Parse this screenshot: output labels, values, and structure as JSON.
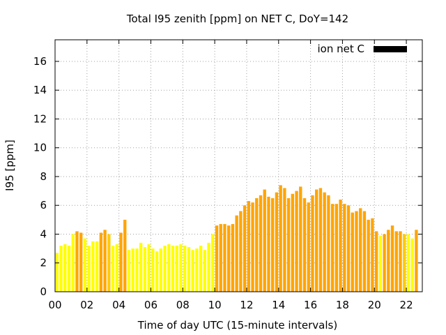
{
  "chart_data": {
    "type": "bar",
    "title": "Total I95 zenith [ppm] on NET C, DoY=142",
    "xlabel": "Time of day UTC (15-minute intervals)",
    "ylabel": "I95 [ppm]",
    "xlim": [
      0,
      23
    ],
    "ylim": [
      0,
      17.5
    ],
    "xticks": [
      "00",
      "02",
      "04",
      "06",
      "08",
      "10",
      "12",
      "14",
      "16",
      "18",
      "20",
      "22"
    ],
    "yticks": [
      "0",
      "2",
      "4",
      "6",
      "8",
      "10",
      "12",
      "14",
      "16"
    ],
    "grid": true,
    "legend": {
      "label": "ion net C",
      "color": "#000000",
      "position": "top-right"
    },
    "colors": {
      "yellow": "#ffff00",
      "amber": "#ffcc00",
      "orange": "#ffa500"
    },
    "bar_width_hours": 0.19,
    "bars": [
      {
        "x": 0.125,
        "y": 2.7,
        "c": "yellow"
      },
      {
        "x": 0.375,
        "y": 3.2,
        "c": "yellow"
      },
      {
        "x": 0.625,
        "y": 3.3,
        "c": "yellow"
      },
      {
        "x": 0.875,
        "y": 3.2,
        "c": "yellow"
      },
      {
        "x": 1.125,
        "y": 4.0,
        "c": "yellow"
      },
      {
        "x": 1.375,
        "y": 4.2,
        "c": "orange"
      },
      {
        "x": 1.625,
        "y": 4.1,
        "c": "orange"
      },
      {
        "x": 1.875,
        "y": 3.7,
        "c": "yellow"
      },
      {
        "x": 2.125,
        "y": 3.2,
        "c": "yellow"
      },
      {
        "x": 2.375,
        "y": 3.5,
        "c": "yellow"
      },
      {
        "x": 2.625,
        "y": 3.5,
        "c": "yellow"
      },
      {
        "x": 2.875,
        "y": 4.1,
        "c": "orange"
      },
      {
        "x": 3.125,
        "y": 4.3,
        "c": "orange"
      },
      {
        "x": 3.375,
        "y": 4.0,
        "c": "amber"
      },
      {
        "x": 3.625,
        "y": 3.2,
        "c": "yellow"
      },
      {
        "x": 3.875,
        "y": 3.3,
        "c": "yellow"
      },
      {
        "x": 4.125,
        "y": 4.1,
        "c": "orange"
      },
      {
        "x": 4.375,
        "y": 5.0,
        "c": "orange"
      },
      {
        "x": 4.625,
        "y": 2.9,
        "c": "yellow"
      },
      {
        "x": 4.875,
        "y": 3.0,
        "c": "yellow"
      },
      {
        "x": 5.125,
        "y": 3.0,
        "c": "yellow"
      },
      {
        "x": 5.375,
        "y": 3.4,
        "c": "yellow"
      },
      {
        "x": 5.625,
        "y": 3.1,
        "c": "yellow"
      },
      {
        "x": 5.875,
        "y": 3.3,
        "c": "yellow"
      },
      {
        "x": 6.125,
        "y": 3.0,
        "c": "yellow"
      },
      {
        "x": 6.375,
        "y": 2.8,
        "c": "yellow"
      },
      {
        "x": 6.625,
        "y": 3.0,
        "c": "yellow"
      },
      {
        "x": 6.875,
        "y": 3.2,
        "c": "yellow"
      },
      {
        "x": 7.125,
        "y": 3.3,
        "c": "yellow"
      },
      {
        "x": 7.375,
        "y": 3.2,
        "c": "yellow"
      },
      {
        "x": 7.625,
        "y": 3.2,
        "c": "yellow"
      },
      {
        "x": 7.875,
        "y": 3.3,
        "c": "yellow"
      },
      {
        "x": 8.125,
        "y": 3.2,
        "c": "yellow"
      },
      {
        "x": 8.375,
        "y": 3.1,
        "c": "yellow"
      },
      {
        "x": 8.625,
        "y": 2.9,
        "c": "yellow"
      },
      {
        "x": 8.875,
        "y": 3.0,
        "c": "yellow"
      },
      {
        "x": 9.125,
        "y": 3.2,
        "c": "yellow"
      },
      {
        "x": 9.375,
        "y": 2.9,
        "c": "yellow"
      },
      {
        "x": 9.625,
        "y": 3.4,
        "c": "yellow"
      },
      {
        "x": 9.875,
        "y": 4.0,
        "c": "yellow"
      },
      {
        "x": 10.125,
        "y": 4.6,
        "c": "orange"
      },
      {
        "x": 10.375,
        "y": 4.7,
        "c": "orange"
      },
      {
        "x": 10.625,
        "y": 4.7,
        "c": "orange"
      },
      {
        "x": 10.875,
        "y": 4.6,
        "c": "orange"
      },
      {
        "x": 11.125,
        "y": 4.7,
        "c": "orange"
      },
      {
        "x": 11.375,
        "y": 5.3,
        "c": "orange"
      },
      {
        "x": 11.625,
        "y": 5.6,
        "c": "orange"
      },
      {
        "x": 11.875,
        "y": 6.0,
        "c": "orange"
      },
      {
        "x": 12.125,
        "y": 6.3,
        "c": "orange"
      },
      {
        "x": 12.375,
        "y": 6.2,
        "c": "orange"
      },
      {
        "x": 12.625,
        "y": 6.5,
        "c": "orange"
      },
      {
        "x": 12.875,
        "y": 6.7,
        "c": "orange"
      },
      {
        "x": 13.125,
        "y": 7.1,
        "c": "orange"
      },
      {
        "x": 13.375,
        "y": 6.6,
        "c": "orange"
      },
      {
        "x": 13.625,
        "y": 6.5,
        "c": "orange"
      },
      {
        "x": 13.875,
        "y": 6.9,
        "c": "orange"
      },
      {
        "x": 14.125,
        "y": 7.4,
        "c": "orange"
      },
      {
        "x": 14.375,
        "y": 7.2,
        "c": "orange"
      },
      {
        "x": 14.625,
        "y": 6.5,
        "c": "orange"
      },
      {
        "x": 14.875,
        "y": 6.8,
        "c": "orange"
      },
      {
        "x": 15.125,
        "y": 7.0,
        "c": "orange"
      },
      {
        "x": 15.375,
        "y": 7.3,
        "c": "orange"
      },
      {
        "x": 15.625,
        "y": 6.5,
        "c": "orange"
      },
      {
        "x": 15.875,
        "y": 6.2,
        "c": "orange"
      },
      {
        "x": 16.125,
        "y": 6.7,
        "c": "orange"
      },
      {
        "x": 16.375,
        "y": 7.1,
        "c": "orange"
      },
      {
        "x": 16.625,
        "y": 7.2,
        "c": "orange"
      },
      {
        "x": 16.875,
        "y": 6.9,
        "c": "orange"
      },
      {
        "x": 17.125,
        "y": 6.7,
        "c": "orange"
      },
      {
        "x": 17.375,
        "y": 6.1,
        "c": "orange"
      },
      {
        "x": 17.625,
        "y": 6.1,
        "c": "orange"
      },
      {
        "x": 17.875,
        "y": 6.4,
        "c": "orange"
      },
      {
        "x": 18.125,
        "y": 6.1,
        "c": "orange"
      },
      {
        "x": 18.375,
        "y": 6.0,
        "c": "orange"
      },
      {
        "x": 18.625,
        "y": 5.5,
        "c": "orange"
      },
      {
        "x": 18.875,
        "y": 5.6,
        "c": "orange"
      },
      {
        "x": 19.125,
        "y": 5.8,
        "c": "orange"
      },
      {
        "x": 19.375,
        "y": 5.6,
        "c": "orange"
      },
      {
        "x": 19.625,
        "y": 5.0,
        "c": "orange"
      },
      {
        "x": 19.875,
        "y": 5.1,
        "c": "orange"
      },
      {
        "x": 20.125,
        "y": 4.2,
        "c": "orange"
      },
      {
        "x": 20.375,
        "y": 3.9,
        "c": "yellow"
      },
      {
        "x": 20.625,
        "y": 4.0,
        "c": "orange"
      },
      {
        "x": 20.875,
        "y": 4.3,
        "c": "orange"
      },
      {
        "x": 21.125,
        "y": 4.6,
        "c": "orange"
      },
      {
        "x": 21.375,
        "y": 4.2,
        "c": "orange"
      },
      {
        "x": 21.625,
        "y": 4.2,
        "c": "orange"
      },
      {
        "x": 21.875,
        "y": 4.0,
        "c": "amber"
      },
      {
        "x": 22.125,
        "y": 4.0,
        "c": "yellow"
      },
      {
        "x": 22.375,
        "y": 3.7,
        "c": "yellow"
      },
      {
        "x": 22.625,
        "y": 4.3,
        "c": "orange"
      }
    ]
  }
}
